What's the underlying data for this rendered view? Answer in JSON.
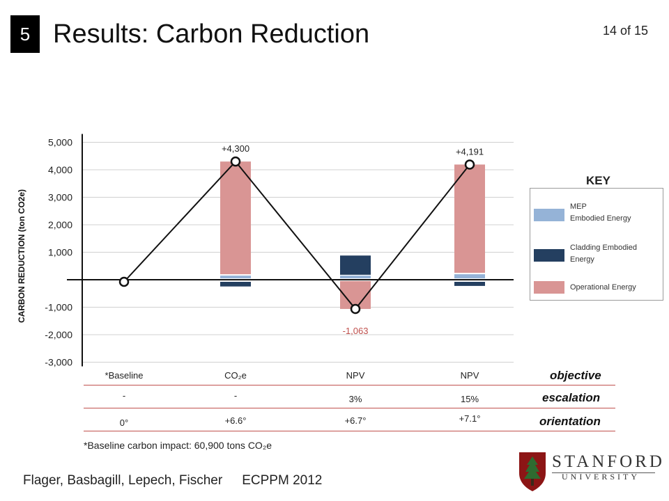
{
  "slide": {
    "section_number": "5",
    "title": "Results: Carbon Reduction",
    "page": "14 of 15"
  },
  "chart_data": {
    "type": "bar",
    "ylabel": "CARBON REDUCTION (ton CO2e)",
    "ylim": [
      -3000,
      5000
    ],
    "yticks": [
      5000,
      4000,
      3000,
      2000,
      1000,
      -1000,
      -2000,
      -3000
    ],
    "ytick_labels": [
      "5,000",
      "4,000",
      "3,000",
      "2,000",
      "1,000",
      "-1,000",
      "-2,000",
      "-3,000"
    ],
    "categories": [
      "*Baseline",
      "CO2e",
      "NPV",
      "NPV"
    ],
    "series": [
      {
        "name": "MEP Embodied Energy",
        "color": "#95b3d7",
        "values": [
          0,
          150,
          150,
          200
        ]
      },
      {
        "name": "Cladding Embodied Energy",
        "color": "#243f60",
        "values": [
          0,
          -220,
          700,
          -200
        ]
      },
      {
        "name": "Operational Energy",
        "color": "#d99594",
        "values": [
          0,
          4300,
          -1063,
          4191
        ]
      }
    ],
    "stack_offsets": [
      {
        "mep_base": 0,
        "op_base": 0
      },
      {
        "mep_base": 0,
        "op_base": 200
      },
      {
        "mep_base": 0,
        "op_base": 0
      },
      {
        "mep_base": 0,
        "op_base": 250
      }
    ],
    "net_line": [
      0,
      4300,
      -1063,
      4191
    ],
    "data_labels": [
      "",
      "+4,300",
      "-1,063",
      "+4,191"
    ],
    "grid": true
  },
  "key": {
    "title": "KEY",
    "items": [
      {
        "label_line1": "MEP",
        "label_line2": "Embodied Energy",
        "color": "#95b3d7"
      },
      {
        "label_line1": "Cladding Embodied",
        "label_line2": "Energy",
        "color": "#243f60"
      },
      {
        "label_line1": "Operational Energy",
        "label_line2": "",
        "color": "#d99594"
      }
    ]
  },
  "table": {
    "rows": [
      {
        "label": "objective",
        "cells": [
          "*Baseline",
          "CO₂e",
          "NPV",
          "NPV"
        ]
      },
      {
        "label": "escalation",
        "cells": [
          "-",
          "-",
          "3%",
          "15%"
        ]
      },
      {
        "label": "orientation",
        "cells": [
          "0°",
          "+6.6°",
          "+6.7°",
          "+7.1°"
        ]
      }
    ]
  },
  "footnote": "*Baseline carbon impact: 60,900 tons CO₂e",
  "footer": {
    "authors": "Flager, Basbagill, Lepech, Fischer",
    "conference": "ECPPM 2012"
  },
  "logo": {
    "line1": "STANFORD",
    "line2": "UNIVERSITY"
  }
}
